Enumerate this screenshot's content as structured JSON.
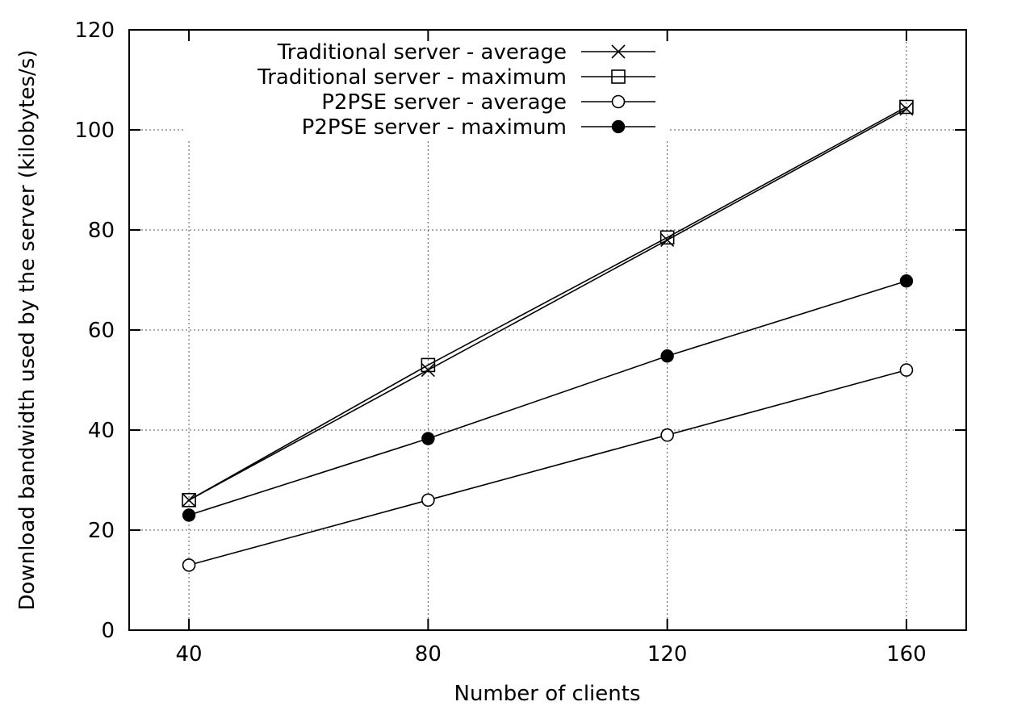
{
  "chart_data": {
    "type": "line",
    "title": "",
    "xlabel": "Number of clients",
    "ylabel": "Download bandwidth used by the server (kilobytes/s)",
    "xlim": [
      30,
      170
    ],
    "ylim": [
      0,
      120
    ],
    "x_ticks": [
      40,
      80,
      120,
      160
    ],
    "y_ticks": [
      0,
      20,
      40,
      60,
      80,
      100,
      120
    ],
    "grid": true,
    "legend_position": "top-center",
    "x": [
      40,
      80,
      120,
      160
    ],
    "series": [
      {
        "name": "Traditional server - average",
        "marker": "cross",
        "values": [
          26,
          52,
          78,
          104.2
        ]
      },
      {
        "name": "Traditional server - maximum",
        "marker": "square",
        "values": [
          26,
          53,
          78.5,
          104.6
        ]
      },
      {
        "name": "P2PSE server - average",
        "marker": "open-circle",
        "values": [
          13,
          26,
          39,
          52
        ]
      },
      {
        "name": "P2PSE server - maximum",
        "marker": "filled-circle",
        "values": [
          23,
          38.3,
          54.8,
          69.8
        ]
      }
    ]
  }
}
